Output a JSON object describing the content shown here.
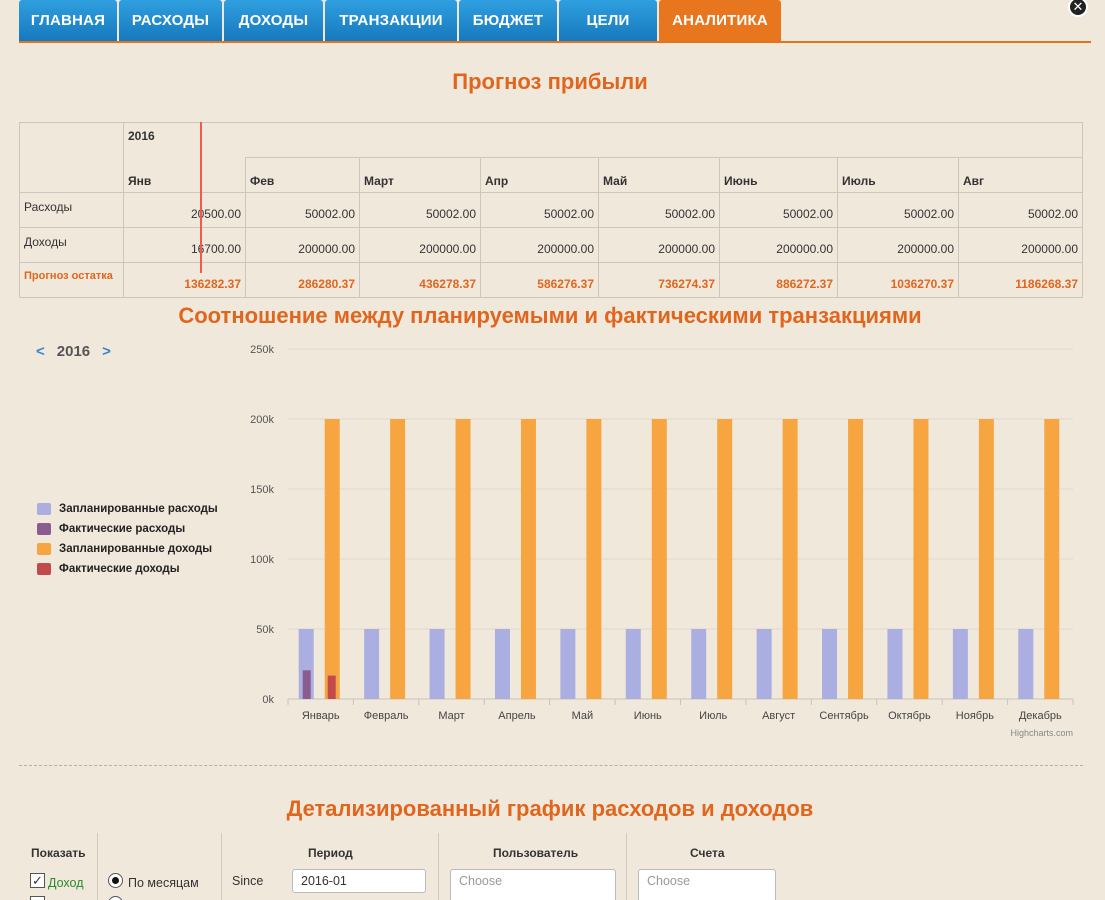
{
  "tabs": [
    {
      "label": "ГЛАВНАЯ"
    },
    {
      "label": "РАСХОДЫ"
    },
    {
      "label": "ДОХОДЫ"
    },
    {
      "label": "ТРАНЗАКЦИИ"
    },
    {
      "label": "БЮДЖЕТ"
    },
    {
      "label": "ЦЕЛИ"
    },
    {
      "label": "АНАЛИТИКА",
      "active": true
    }
  ],
  "close_label": "✕",
  "forecast": {
    "title": "Прогноз прибыли",
    "year": "2016",
    "months": [
      "Янв",
      "Фев",
      "Март",
      "Апр",
      "Май",
      "Июнь",
      "Июль",
      "Авг"
    ],
    "rows": {
      "expenses": {
        "label": "Расходы",
        "values": [
          "20500.00",
          "50002.00",
          "50002.00",
          "50002.00",
          "50002.00",
          "50002.00",
          "50002.00",
          "50002.00"
        ]
      },
      "income": {
        "label": "Доходы",
        "values": [
          "16700.00",
          "200000.00",
          "200000.00",
          "200000.00",
          "200000.00",
          "200000.00",
          "200000.00",
          "200000.00"
        ]
      },
      "balance": {
        "label": "Прогноз остатка",
        "values": [
          "136282.37",
          "286280.37",
          "436278.37",
          "586276.37",
          "736274.37",
          "886272.37",
          "1036270.37",
          "1186268.37"
        ]
      }
    }
  },
  "comparison": {
    "title": "Соотношение между планируемыми и фактическими транзакциями",
    "year": "2016",
    "prev_label": "<",
    "next_label": ">",
    "credit": "Highcharts.com"
  },
  "chart_data": {
    "type": "bar",
    "categories": [
      "Январь",
      "Февраль",
      "Март",
      "Апрель",
      "Май",
      "Июнь",
      "Июль",
      "Август",
      "Сентябрь",
      "Октябрь",
      "Ноябрь",
      "Декабрь"
    ],
    "series": [
      {
        "name": "Запланированные расходы",
        "color": "#aaaee0",
        "values": [
          50002,
          50002,
          50002,
          50002,
          50002,
          50002,
          50002,
          50002,
          50002,
          50002,
          50002,
          50002
        ]
      },
      {
        "name": "Фактические расходы",
        "color": "#8a5d8e",
        "values": [
          20500,
          0,
          0,
          0,
          0,
          0,
          0,
          0,
          0,
          0,
          0,
          0
        ]
      },
      {
        "name": "Запланированные доходы",
        "color": "#f7a540",
        "values": [
          200000,
          200000,
          200000,
          200000,
          200000,
          200000,
          200000,
          200000,
          200000,
          200000,
          200000,
          200000
        ]
      },
      {
        "name": "Фактические доходы",
        "color": "#c34a4a",
        "values": [
          16700,
          0,
          0,
          0,
          0,
          0,
          0,
          0,
          0,
          0,
          0,
          0
        ]
      }
    ],
    "yticks": [
      "0k",
      "50k",
      "100k",
      "150k",
      "200k",
      "250k"
    ],
    "ylim": [
      0,
      250000
    ],
    "grid": true,
    "legend_position": "left"
  },
  "details": {
    "title": "Детализированный график расходов и доходов",
    "show_label": "Показать",
    "income_checkbox_label": "Доход",
    "by_month_label": "По месяцам",
    "since_label": "Since",
    "period_label": "Период",
    "period_value": "2016-01",
    "user_label": "Пользователь",
    "user_placeholder": "Choose",
    "accounts_label": "Счета",
    "accounts_placeholder": "Choose"
  }
}
